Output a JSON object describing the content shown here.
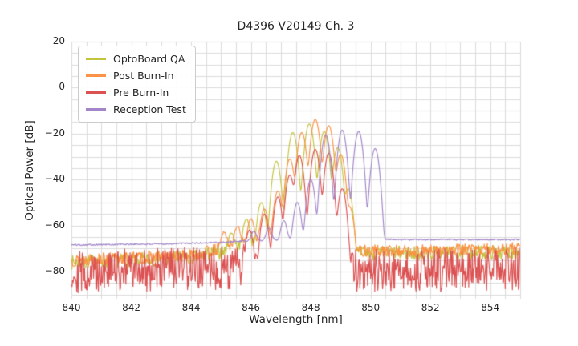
{
  "title": "D4396 V20149 Ch. 3",
  "xlabel": "Wavelength [nm]",
  "ylabel": "Optical Power [dB]",
  "chart_data": {
    "type": "line",
    "title": "D4396 V20149 Ch. 3",
    "xlabel": "Wavelength [nm]",
    "ylabel": "Optical Power [dB]",
    "xlim": [
      840,
      855
    ],
    "ylim": [
      -91.8,
      20
    ],
    "xticks": [
      840,
      842,
      844,
      846,
      848,
      850,
      852,
      854
    ],
    "yticks": [
      20,
      0,
      -20,
      -40,
      -60,
      -80
    ],
    "grid": {
      "on": true,
      "x_step": 0.5,
      "y_step": 5,
      "color": "#dbdbdb"
    },
    "legend_position": "upper left",
    "legend_entries": [
      "OptoBoard QA",
      "Post Burn-In",
      "Pre Burn-In",
      "Reception Test"
    ],
    "series_note": "Multimode VCSEL optical spectra; 'modes' are [wavelength_nm, peak_dB] of each longitudinal mode peak read from the plot; between modes the traces fall to deep valleys; noise_floor gives the broadband baseline [wavelength_nm, dB] anchors with random jitter amplitude in dB.",
    "series": [
      {
        "name": "OptoBoard QA",
        "color": "#c3c43e",
        "mode_width_nm": 0.05,
        "modes": [
          [
            845.35,
            -64
          ],
          [
            845.85,
            -57.5
          ],
          [
            846.35,
            -50
          ],
          [
            846.85,
            -32
          ],
          [
            847.4,
            -19.5
          ],
          [
            847.95,
            -15.8
          ],
          [
            848.45,
            -19
          ],
          [
            848.9,
            -26
          ],
          [
            849.25,
            -44
          ]
        ],
        "noise_floor": {
          "points": [
            [
              840,
              -76
            ],
            [
              844,
              -74
            ],
            [
              845.2,
              -71
            ],
            [
              845.9,
              -69
            ],
            [
              846.5,
              -68
            ],
            [
              847.5,
              -69
            ],
            [
              849.6,
              -72
            ],
            [
              852,
              -72
            ],
            [
              855,
              -71.5
            ]
          ],
          "jitter": 3.2
        }
      },
      {
        "name": "Post Burn-In",
        "color": "#fb9245",
        "mode_width_nm": 0.05,
        "modes": [
          [
            845.1,
            -64
          ],
          [
            845.55,
            -61
          ],
          [
            846.0,
            -57.5
          ],
          [
            846.45,
            -53
          ],
          [
            846.9,
            -45
          ],
          [
            847.3,
            -31
          ],
          [
            847.7,
            -19.5
          ],
          [
            848.15,
            -13.8
          ],
          [
            848.6,
            -16.5
          ],
          [
            849.0,
            -29
          ],
          [
            849.3,
            -52
          ]
        ],
        "noise_floor": {
          "points": [
            [
              840,
              -75
            ],
            [
              844,
              -73
            ],
            [
              845.2,
              -69.5
            ],
            [
              846.4,
              -66.5
            ],
            [
              847.3,
              -67.5
            ],
            [
              849.6,
              -71
            ],
            [
              852,
              -71
            ],
            [
              855,
              -70
            ]
          ],
          "jitter": 2.8
        }
      },
      {
        "name": "Pre Burn-In",
        "color": "#dc5152",
        "mode_width_nm": 0.048,
        "modes": [
          [
            845.95,
            -62
          ],
          [
            846.45,
            -55
          ],
          [
            846.9,
            -47.5
          ],
          [
            847.3,
            -38
          ],
          [
            847.62,
            -29.5
          ],
          [
            848.15,
            -26.8
          ],
          [
            848.6,
            -28.5
          ],
          [
            849.05,
            -44
          ]
        ],
        "noise_floor": {
          "points": [
            [
              840,
              -80
            ],
            [
              845,
              -78.5
            ],
            [
              846.5,
              -77
            ],
            [
              848,
              -78
            ],
            [
              849.4,
              -79.5
            ],
            [
              852,
              -79.5
            ],
            [
              855,
              -78.5
            ]
          ],
          "jitter": 9.5
        }
      },
      {
        "name": "Reception Test",
        "color": "#a286c9",
        "mode_width_nm": 0.048,
        "modes": [
          [
            846.1,
            -64.5
          ],
          [
            846.6,
            -62.5
          ],
          [
            847.1,
            -58.5
          ],
          [
            847.55,
            -50
          ],
          [
            848.0,
            -40
          ],
          [
            848.5,
            -20.5
          ],
          [
            849.05,
            -18.5
          ],
          [
            849.6,
            -19
          ],
          [
            850.15,
            -26.5
          ]
        ],
        "noise_floor": {
          "points": [
            [
              840,
              -68.4
            ],
            [
              843,
              -68
            ],
            [
              845,
              -67.3
            ],
            [
              846,
              -66.6
            ],
            [
              848,
              -66
            ],
            [
              850.4,
              -65.8
            ],
            [
              851,
              -66.1
            ],
            [
              855,
              -66.1
            ]
          ],
          "jitter": 0.35
        }
      }
    ]
  }
}
